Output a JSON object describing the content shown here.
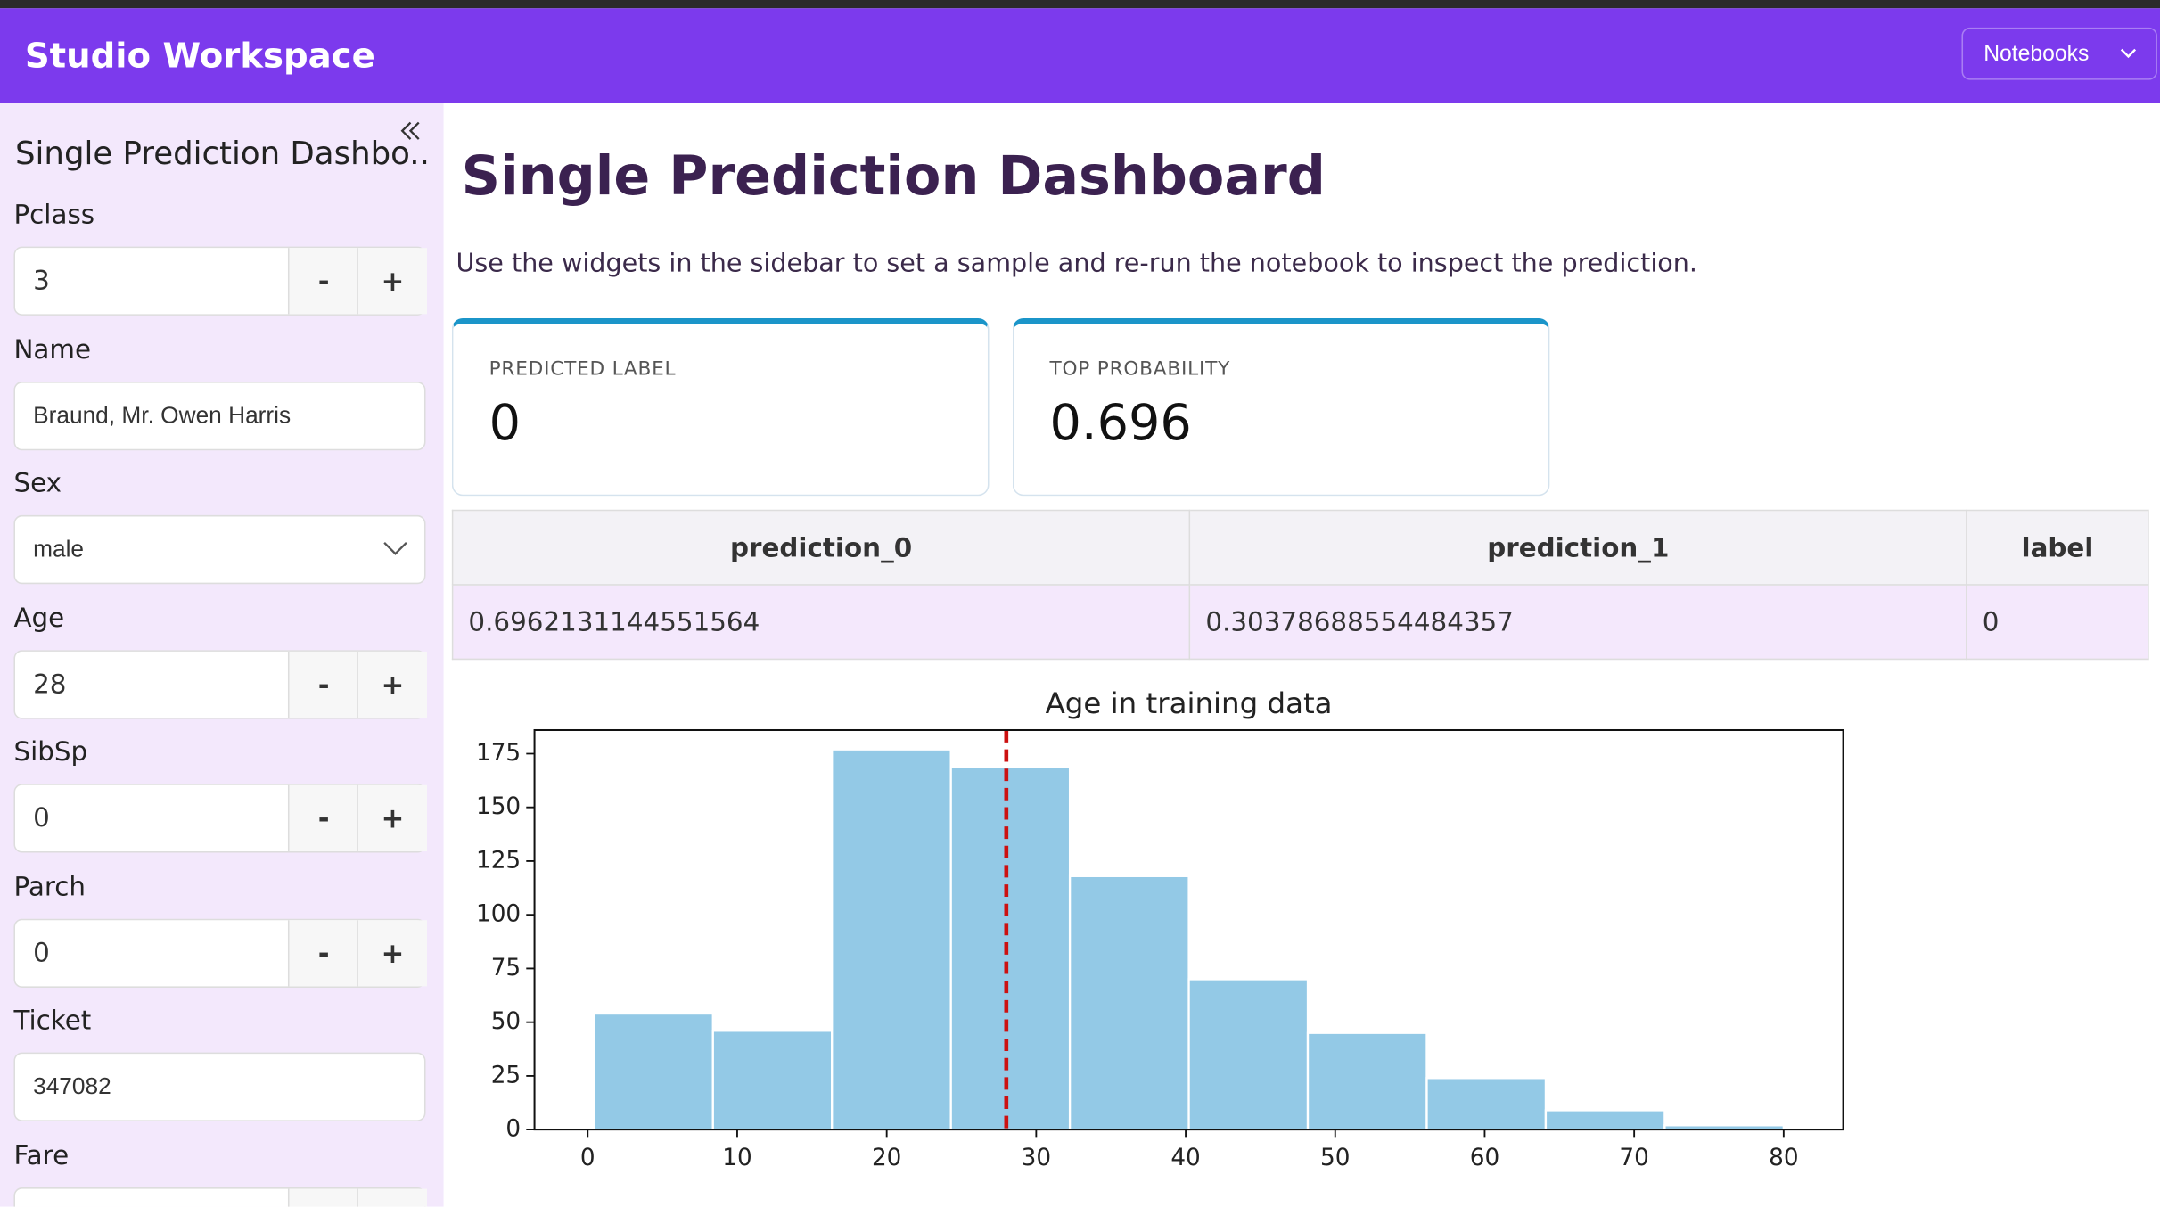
{
  "header": {
    "title": "Studio Workspace",
    "menu": "Notebooks"
  },
  "sidebar": {
    "title": "Single Prediction Dashbo...",
    "decrement": "-",
    "increment": "+",
    "fields": [
      {
        "label": "Pclass",
        "value": "3"
      },
      {
        "label": "Name",
        "value": "Braund, Mr. Owen Harris"
      },
      {
        "label": "Sex",
        "value": "male"
      },
      {
        "label": "Age",
        "value": "28"
      },
      {
        "label": "SibSp",
        "value": "0"
      },
      {
        "label": "Parch",
        "value": "0"
      },
      {
        "label": "Ticket",
        "value": "347082"
      },
      {
        "label": "Fare"
      }
    ]
  },
  "main": {
    "title": "Single Prediction Dashboard",
    "description": "Use the widgets in the sidebar to set a sample and re-run the notebook to inspect the prediction.",
    "cards": [
      {
        "label": "PREDICTED LABEL",
        "value": "0"
      },
      {
        "label": "TOP PROBABILITY",
        "value": "0.696"
      }
    ],
    "table": {
      "columns": [
        "prediction_0",
        "prediction_1",
        "label"
      ],
      "rows": [
        [
          "0.6962131144551564",
          "0.30378688554484357",
          "0"
        ]
      ]
    }
  },
  "chart_data": {
    "type": "histogram",
    "title": "Age in training data",
    "bins": [
      0.42,
      8.378,
      16.336,
      24.294,
      32.252,
      40.21,
      48.168,
      56.126,
      64.084,
      72.042,
      80
    ],
    "values": [
      54,
      46,
      177,
      169,
      118,
      70,
      45,
      24,
      9,
      2
    ],
    "color": "#93c9e6",
    "edgecolor": "#ffffff",
    "marker": {
      "x": 28,
      "color": "#cc1111"
    },
    "xlim": [
      -3.56,
      83.98
    ],
    "ylim": [
      0,
      186
    ],
    "xticks": [
      0,
      10,
      20,
      30,
      40,
      50,
      60,
      70,
      80
    ],
    "yticks": [
      0,
      25,
      50,
      75,
      100,
      125,
      150,
      175
    ]
  }
}
